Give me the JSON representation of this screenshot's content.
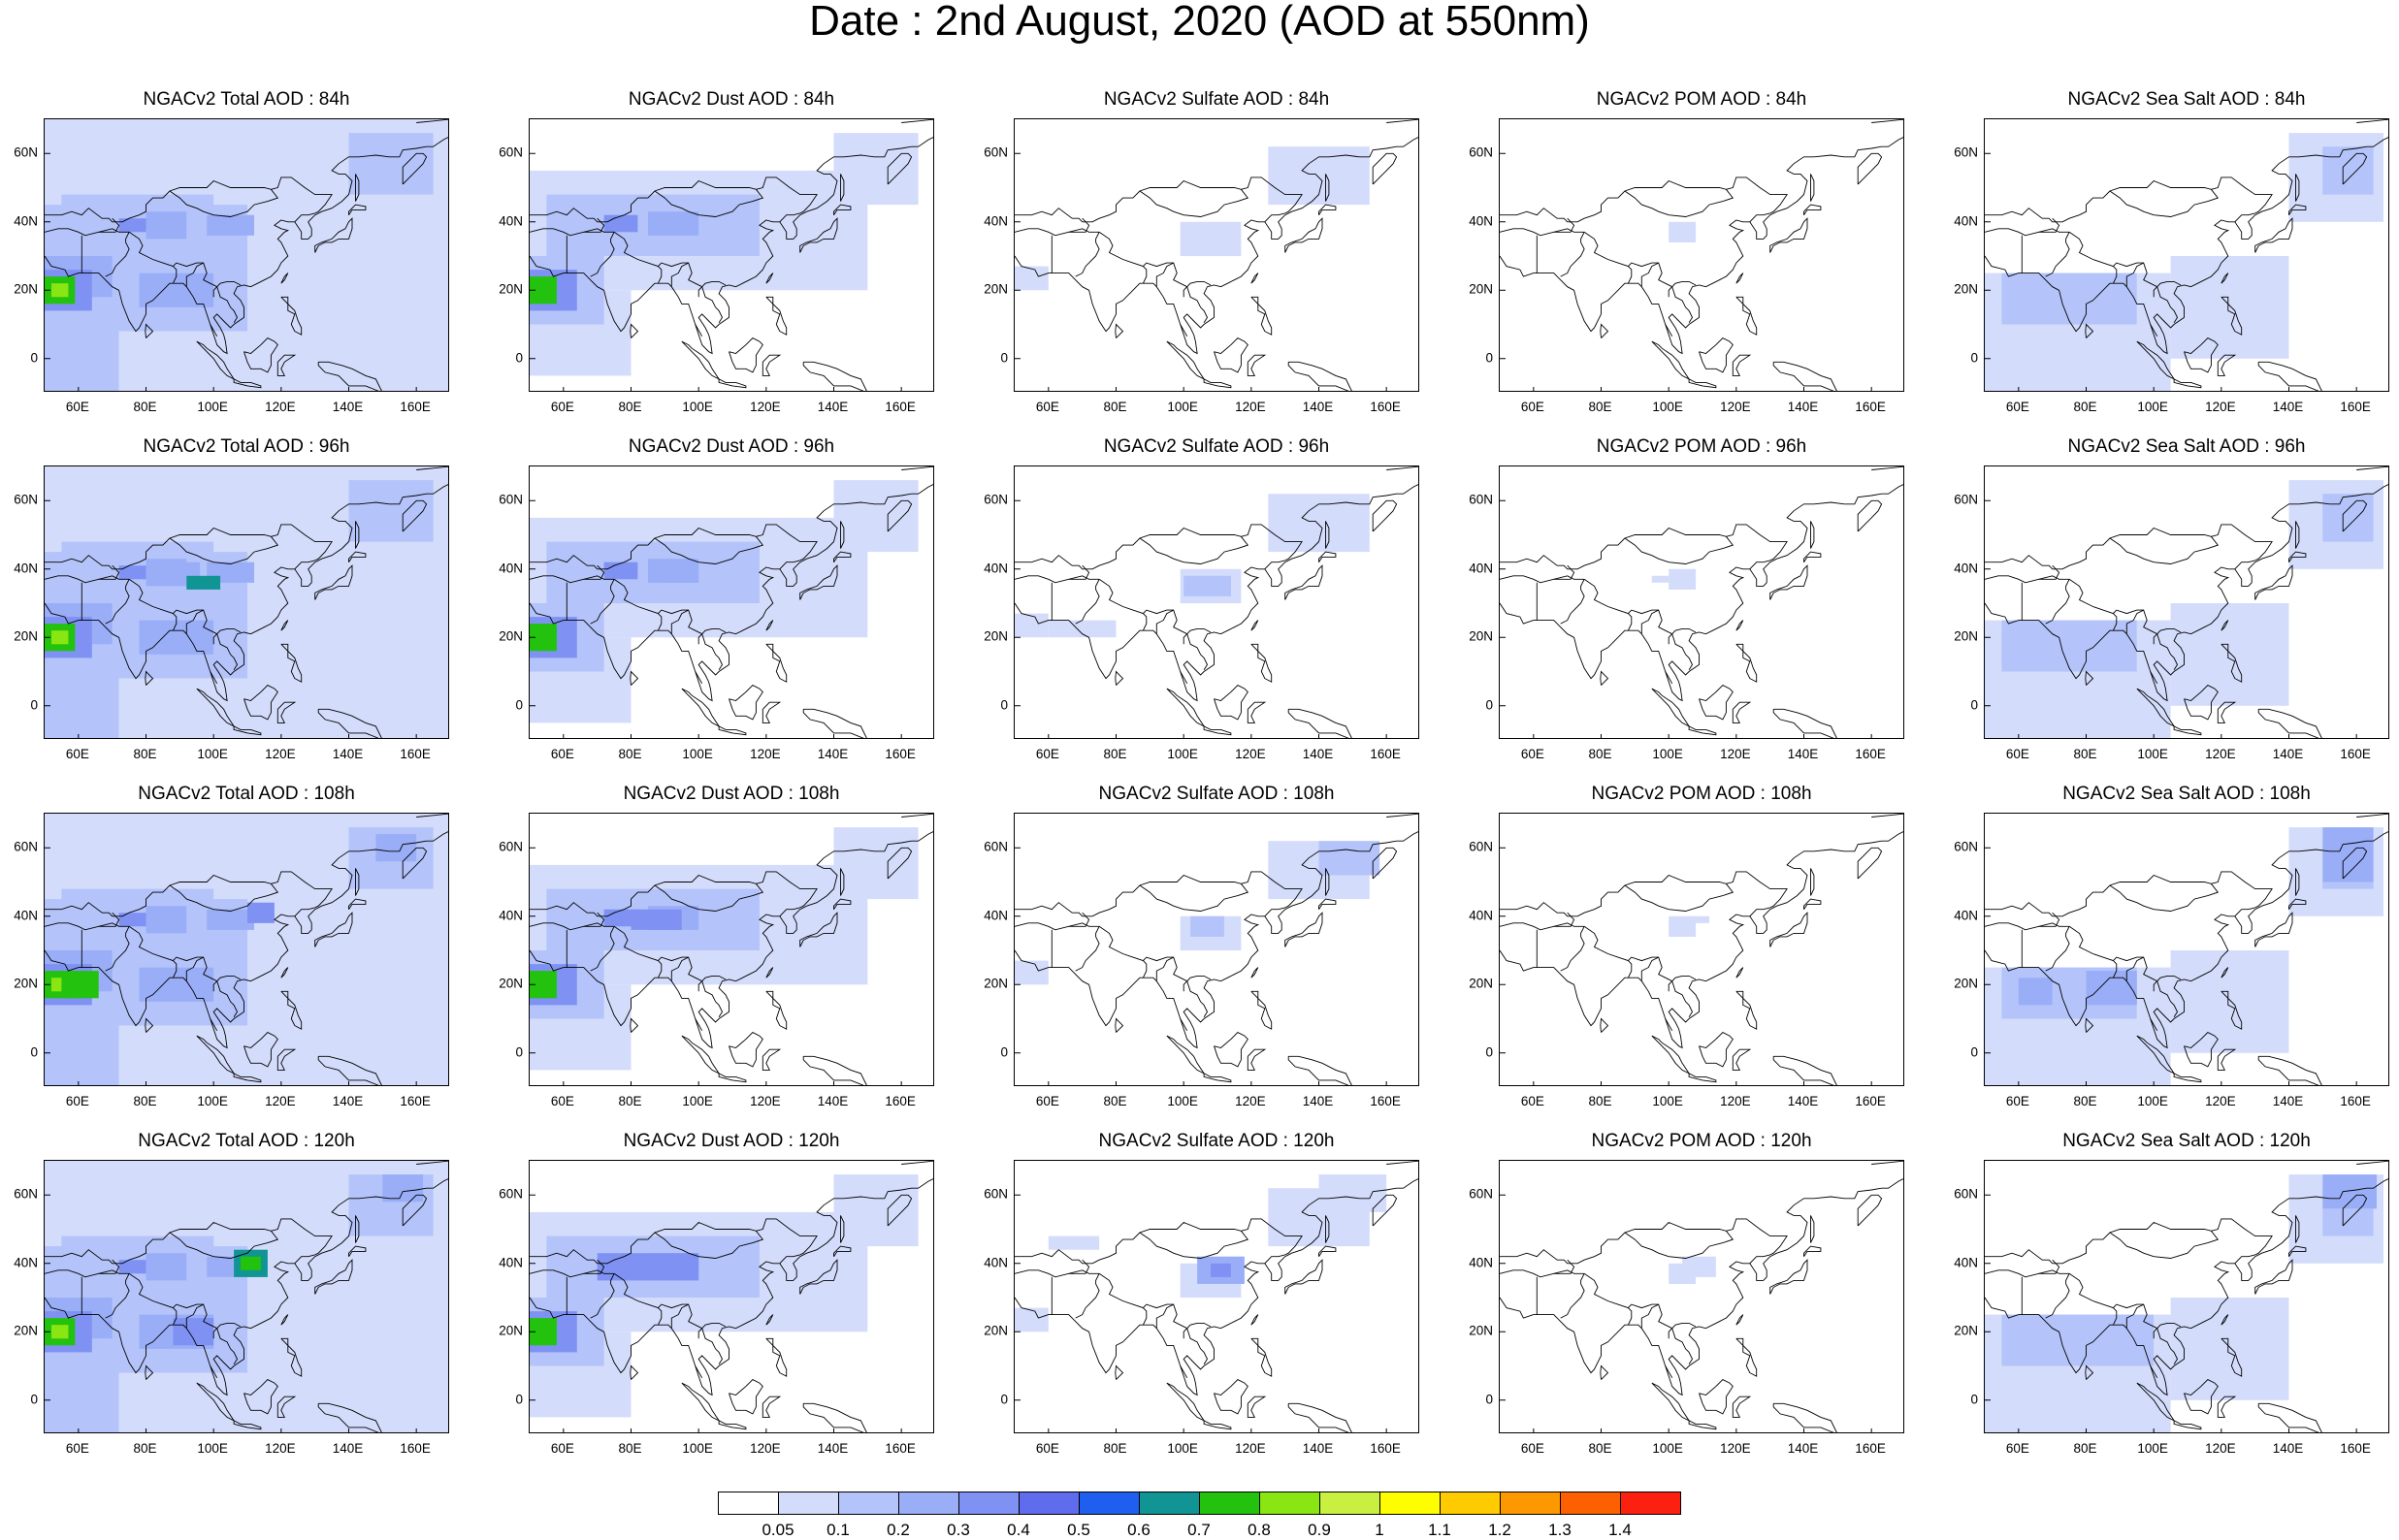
{
  "title": "Date : 2nd August, 2020 (AOD at 550nm)",
  "rows": [
    "84h",
    "96h",
    "108h",
    "120h"
  ],
  "panels": [
    {
      "title": "NGACv2 Total AOD : 84h",
      "species": "total",
      "step": "84h"
    },
    {
      "title": "NGACv2 Dust AOD : 84h",
      "species": "dust",
      "step": "84h"
    },
    {
      "title": "NGACv2 Sulfate AOD : 84h",
      "species": "sulfate",
      "step": "84h"
    },
    {
      "title": "NGACv2 POM AOD : 84h",
      "species": "pom",
      "step": "84h"
    },
    {
      "title": "NGACv2 Sea Salt AOD : 84h",
      "species": "seasalt",
      "step": "84h"
    },
    {
      "title": "NGACv2 Total AOD : 96h",
      "species": "total",
      "step": "96h"
    },
    {
      "title": "NGACv2 Dust AOD : 96h",
      "species": "dust",
      "step": "96h"
    },
    {
      "title": "NGACv2 Sulfate AOD : 96h",
      "species": "sulfate",
      "step": "96h"
    },
    {
      "title": "NGACv2 POM AOD : 96h",
      "species": "pom",
      "step": "96h"
    },
    {
      "title": "NGACv2 Sea Salt AOD : 96h",
      "species": "seasalt",
      "step": "96h"
    },
    {
      "title": "NGACv2 Total AOD : 108h",
      "species": "total",
      "step": "108h"
    },
    {
      "title": "NGACv2 Dust AOD : 108h",
      "species": "dust",
      "step": "108h"
    },
    {
      "title": "NGACv2 Sulfate AOD : 108h",
      "species": "sulfate",
      "step": "108h"
    },
    {
      "title": "NGACv2 POM AOD : 108h",
      "species": "pom",
      "step": "108h"
    },
    {
      "title": "NGACv2 Sea Salt AOD : 108h",
      "species": "seasalt",
      "step": "108h"
    },
    {
      "title": "NGACv2 Total AOD : 120h",
      "species": "total",
      "step": "120h"
    },
    {
      "title": "NGACv2 Dust AOD : 120h",
      "species": "dust",
      "step": "120h"
    },
    {
      "title": "NGACv2 Sulfate AOD : 120h",
      "species": "sulfate",
      "step": "120h"
    },
    {
      "title": "NGACv2 POM AOD : 120h",
      "species": "pom",
      "step": "120h"
    },
    {
      "title": "NGACv2 Sea Salt  AOD : 120h",
      "species": "seasalt",
      "step": "120h"
    }
  ],
  "lon_ticks": [
    "60E",
    "80E",
    "100E",
    "120E",
    "140E",
    "160E"
  ],
  "lon_values": [
    60,
    80,
    100,
    120,
    140,
    160
  ],
  "lat_ticks": [
    "60N",
    "40N",
    "20N",
    "0"
  ],
  "lat_values": [
    60,
    40,
    20,
    0
  ],
  "lon_range": [
    50,
    170
  ],
  "lat_range": [
    -10,
    70
  ],
  "colorbar": {
    "labels": [
      "0.05",
      "0.1",
      "0.2",
      "0.3",
      "0.4",
      "0.5",
      "0.6",
      "0.7",
      "0.8",
      "0.9",
      "1",
      "1.1",
      "1.2",
      "1.3",
      "1.4"
    ],
    "colors": [
      "#ffffff",
      "#d4dcfb",
      "#b4c4fa",
      "#9aaef8",
      "#7f92f3",
      "#5f6cee",
      "#1f5ff0",
      "#109494",
      "#22c20e",
      "#8ae612",
      "#c9f040",
      "#fefe00",
      "#fecb00",
      "#fd9800",
      "#fd6000",
      "#fc2010"
    ]
  }
}
